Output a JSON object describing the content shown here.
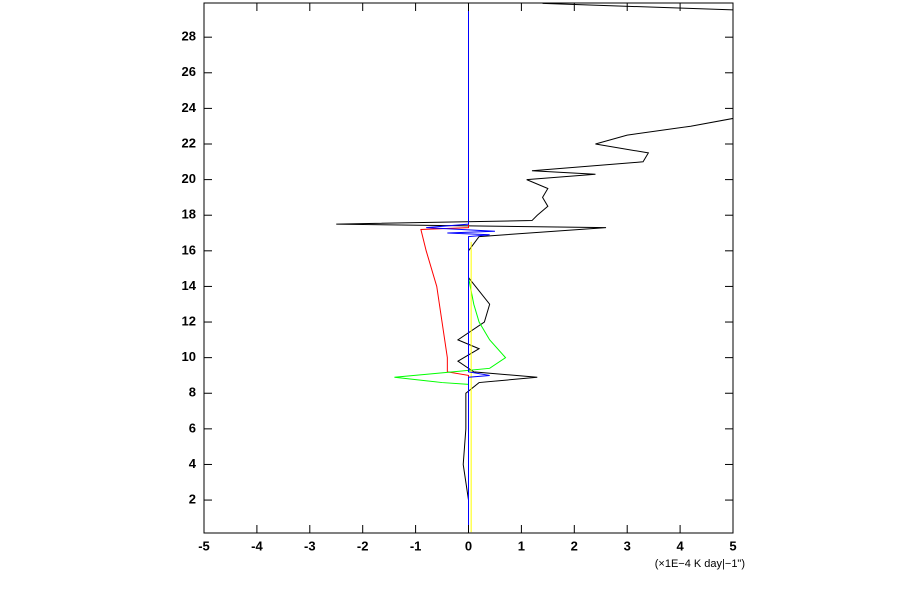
{
  "chart_data": {
    "type": "line",
    "x_label": "(×1E−4 K day|−1\")",
    "xlim": [
      -5,
      5
    ],
    "xticks": [
      -5,
      -4,
      -3,
      -2,
      -1,
      0,
      1,
      2,
      3,
      4,
      5
    ],
    "ylim": [
      0.15,
      29.92
    ],
    "yticks": [
      2,
      4,
      6,
      8,
      10,
      12,
      14,
      16,
      18,
      20,
      22,
      24,
      26,
      28
    ],
    "series": [
      {
        "color": "#000000",
        "y": [
          0.2,
          2,
          4,
          6,
          8,
          8.6,
          8.9,
          9.2,
          9.8,
          10.5,
          11,
          12,
          13,
          14.5,
          16,
          16.8,
          17.3,
          17.5,
          17.7,
          18,
          18.5,
          19,
          19.5,
          20,
          20.3,
          20.5,
          21,
          21.5,
          22,
          22.5,
          23,
          23.6,
          29.5,
          29.9
        ],
        "values": [
          0,
          0,
          -0.1,
          -0.05,
          -0.05,
          0.2,
          1.3,
          0.1,
          -0.2,
          0.2,
          -0.2,
          0.3,
          0.4,
          0,
          0,
          0.2,
          2.6,
          -2.5,
          1.2,
          1.3,
          1.5,
          1.4,
          1.5,
          1.1,
          2.4,
          1.2,
          3.3,
          3.4,
          2.4,
          3,
          4.2,
          5.3,
          5.3,
          1.4
        ]
      },
      {
        "color": "#ff0000",
        "y": [
          0.2,
          9,
          9.2,
          10,
          12,
          14,
          16,
          17.2,
          17.3,
          17.5
        ],
        "values": [
          0,
          0,
          -0.4,
          -0.4,
          -0.5,
          -0.6,
          -0.8,
          -0.9,
          0,
          0
        ]
      },
      {
        "color": "#00ff00",
        "y": [
          0.2,
          8.5,
          8.6,
          8.9,
          9.2,
          9.4,
          10,
          11,
          12,
          13,
          14.5,
          16.5
        ],
        "values": [
          0,
          0,
          -0.5,
          -1.4,
          -0.3,
          0.4,
          0.7,
          0.4,
          0.2,
          0.1,
          0,
          0
        ]
      },
      {
        "color": "#ffff00",
        "y": [
          0.2,
          16.5
        ],
        "values": [
          0.05,
          0.05
        ]
      },
      {
        "color": "#0000ff",
        "y": [
          0.2,
          8.9,
          9.0,
          9.2,
          16.8,
          16.9,
          17.0,
          17.1,
          17.3,
          17.5,
          29.9
        ],
        "values": [
          0,
          0,
          0.4,
          0,
          0,
          0.4,
          -0.4,
          0.5,
          -0.8,
          0,
          0
        ]
      }
    ]
  }
}
